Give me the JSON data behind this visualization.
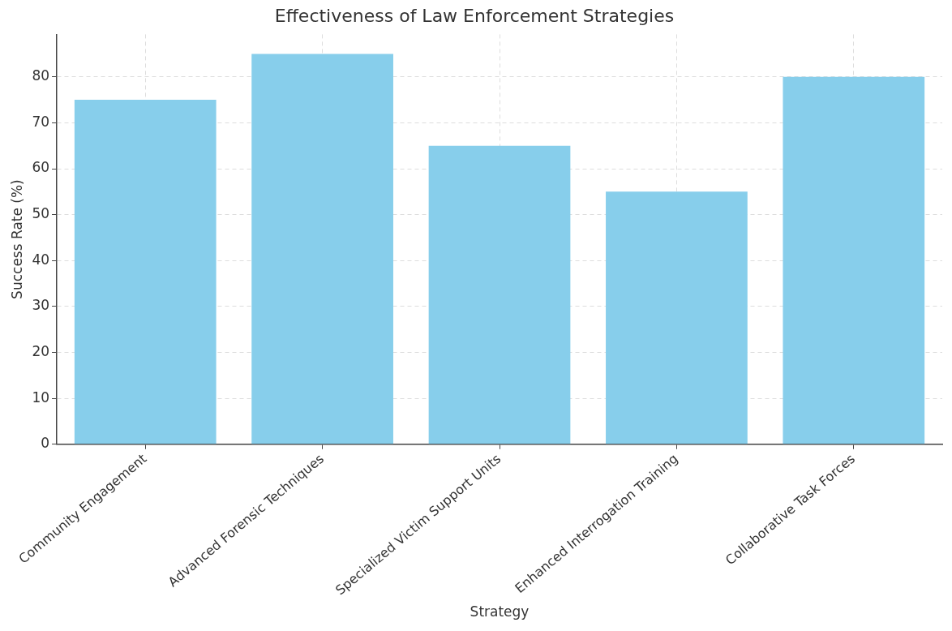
{
  "chart_data": {
    "type": "bar",
    "title": "Effectiveness of Law Enforcement Strategies",
    "xlabel": "Strategy",
    "ylabel": "Success Rate (%)",
    "categories": [
      "Community Engagement",
      "Advanced Forensic Techniques",
      "Specialized Victim Support Units",
      "Enhanced Interrogation Training",
      "Collaborative Task Forces"
    ],
    "values": [
      75,
      85,
      65,
      55,
      80
    ],
    "color": "#87ceeb",
    "ylim": [
      0,
      89.25
    ],
    "yticks": [
      0,
      10,
      20,
      30,
      40,
      50,
      60,
      70,
      80
    ],
    "grid": true
  }
}
